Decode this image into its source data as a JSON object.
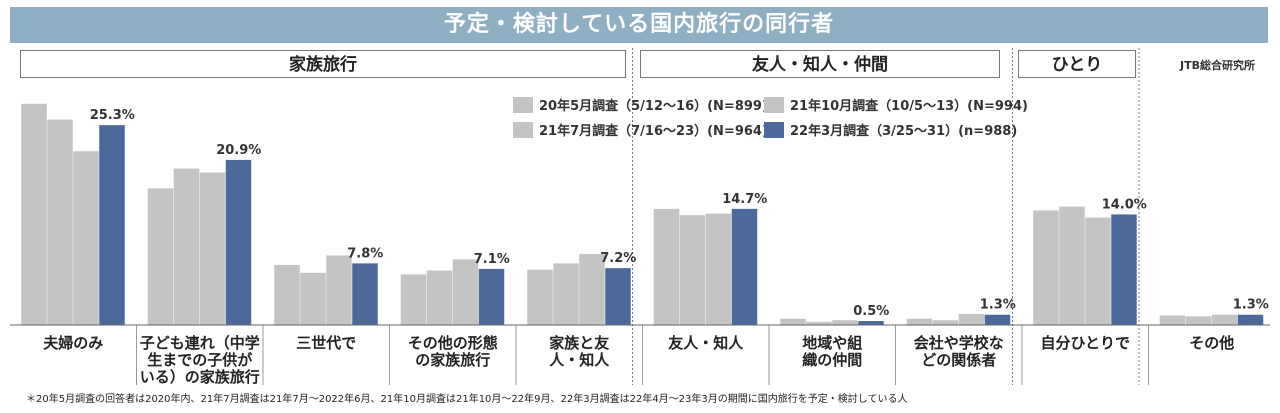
{
  "title": "予定・検討している国内旅行の同行者",
  "source": "JTB総合研究所",
  "groups": [
    "家族旅行",
    "友人・知人・仲間",
    "ひとり"
  ],
  "footnote": "＊20年5月調査の回答者は2020年内、21年7月調査は21年7月～2022年6月、21年10月調査は21年10月～22年9月、22年3月調査は22年4月～23年3月の期間に国内旅行を予定・検討している人",
  "chart_data": {
    "type": "bar",
    "categories": [
      [
        "夫婦のみ"
      ],
      [
        "子ども連れ（中学",
        "生までの子供が",
        "いる）の家族旅行"
      ],
      [
        "三世代で"
      ],
      [
        "その他の形態",
        "の家族旅行"
      ],
      [
        "家族と友",
        "人・知人"
      ],
      [
        "友人・知人"
      ],
      [
        "地域や組",
        "織の仲間"
      ],
      [
        "会社や学校な",
        "どの関係者"
      ],
      [
        "自分ひとりで"
      ],
      [
        "その他"
      ]
    ],
    "series": [
      {
        "name": "20年5月調査（5/12～16）(N=899)",
        "color": "#c4c4c4",
        "values": [
          28.0,
          17.3,
          7.6,
          6.4,
          7.0,
          14.7,
          0.8,
          0.8,
          14.5,
          1.2
        ]
      },
      {
        "name": "21年7月調査（7/16～23）(N=964)",
        "color": "#c4c4c4",
        "values": [
          26.0,
          19.8,
          6.6,
          6.9,
          7.8,
          13.9,
          0.4,
          0.6,
          15.0,
          1.1
        ]
      },
      {
        "name": "21年10月調査（10/5～13）(N=994)",
        "color": "#c4c4c4",
        "values": [
          22.0,
          19.3,
          8.8,
          8.3,
          9.0,
          14.1,
          0.6,
          1.4,
          13.6,
          1.3
        ]
      },
      {
        "name": "22年3月調査（3/25～31）(n=988)",
        "color": "#4b6a9b",
        "values": [
          25.3,
          20.9,
          7.8,
          7.1,
          7.2,
          14.7,
          0.5,
          1.3,
          14.0,
          1.3
        ]
      }
    ],
    "value_labels": [
      "25.3%",
      "20.9%",
      "7.8%",
      "7.1%",
      "7.2%",
      "14.7%",
      "0.5%",
      "1.3%",
      "14.0%",
      "1.3%"
    ],
    "legend": [
      "20年5月調査（5/12～16）(N=899)",
      "21年10月調査（10/5～13）(N=994)",
      "21年7月調査（7/16～23）(N=964)",
      "22年3月調査（3/25～31）(n=988)"
    ],
    "legend_colors": [
      "#c4c4c4",
      "#c4c4c4",
      "#c4c4c4",
      "#4b6a9b"
    ],
    "ylim": [
      0,
      30
    ],
    "grid": false
  }
}
